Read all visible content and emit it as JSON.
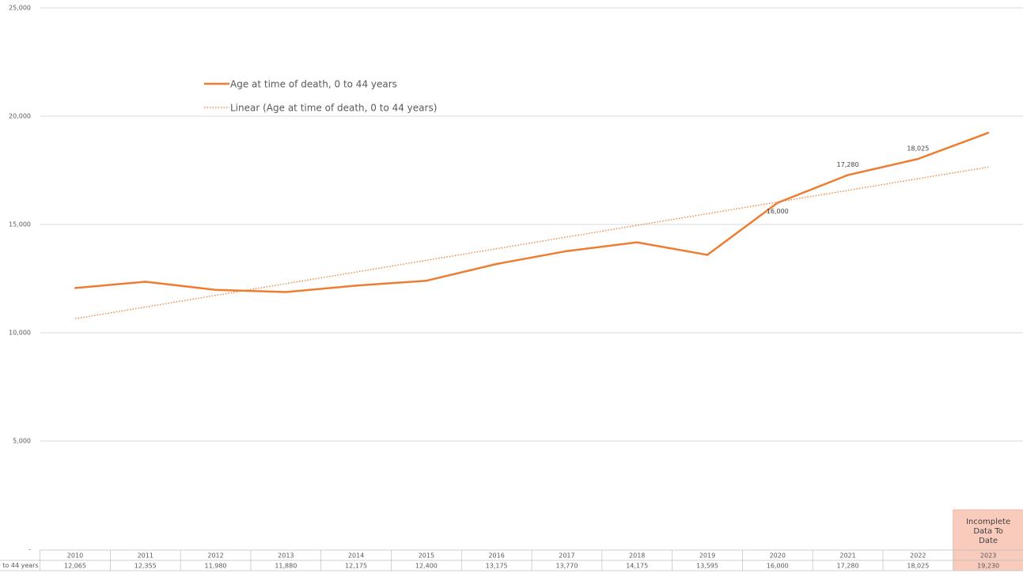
{
  "chart_data": {
    "type": "line",
    "categories": [
      "2010",
      "2011",
      "2012",
      "2013",
      "2014",
      "2015",
      "2016",
      "2017",
      "2018",
      "2019",
      "2020",
      "2021",
      "2022",
      "2023"
    ],
    "series": [
      {
        "name": "Age at time of death, 0 to 44 years",
        "color": "#ed7d31",
        "values": [
          12065,
          12355,
          11980,
          11880,
          12175,
          12400,
          13175,
          13770,
          14175,
          13595,
          16000,
          17280,
          18025,
          19230
        ],
        "value_labels": [
          "12,065",
          "12,355",
          "11,980",
          "11,880",
          "12,175",
          "12,400",
          "13,175",
          "13,770",
          "14,175",
          "13,595",
          "16,000",
          "17,280",
          "18,025",
          "19,230"
        ]
      }
    ],
    "trendline": {
      "type": "linear",
      "name": "Linear (Age at time of death, 0 to 44 years)",
      "color": "#ed7d31"
    },
    "annotation": "Incomplete Data To Date",
    "ylim": [
      0,
      25000
    ],
    "yticks": [
      {
        "value": 0,
        "label": "-"
      },
      {
        "value": 5000,
        "label": "5,000"
      },
      {
        "value": 10000,
        "label": "10,000"
      },
      {
        "value": 15000,
        "label": "15,000"
      },
      {
        "value": 20000,
        "label": "20,000"
      },
      {
        "value": 25000,
        "label": "25,000"
      }
    ],
    "grid": true
  }
}
